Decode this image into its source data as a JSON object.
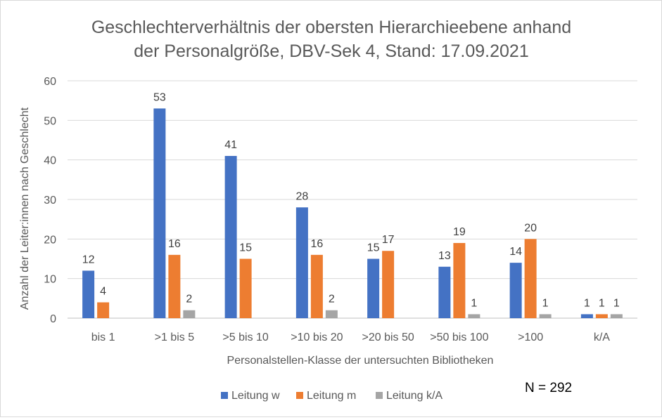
{
  "chart_data": {
    "type": "bar",
    "title_lines": [
      "Geschlechterverhältnis der obersten Hierarchieebene anhand",
      "der Personalgröße, DBV-Sek 4, Stand: 17.09.2021"
    ],
    "xlabel": "Personalstellen-Klasse der untersuchten Bibliotheken",
    "ylabel": "Anzahl der Leiter:innen  nach Geschlecht",
    "ylim": [
      0,
      60
    ],
    "yticks": [
      0,
      10,
      20,
      30,
      40,
      50,
      60
    ],
    "grid": true,
    "legend_position": "bottom",
    "categories": [
      "bis 1",
      ">1 bis 5",
      ">5 bis 10",
      ">10 bis 20",
      ">20 bis 50",
      ">50 bis 100",
      ">100",
      "k/A"
    ],
    "series": [
      {
        "name": "Leitung w",
        "color": "#4472c4",
        "values": [
          12,
          53,
          41,
          28,
          15,
          13,
          14,
          1
        ]
      },
      {
        "name": "Leitung m",
        "color": "#ed7d31",
        "values": [
          4,
          16,
          15,
          16,
          17,
          19,
          20,
          1
        ]
      },
      {
        "name": "Leitung k/A",
        "color": "#a5a5a5",
        "values": [
          null,
          2,
          null,
          2,
          null,
          1,
          1,
          1
        ]
      }
    ],
    "annotation": "N = 292"
  }
}
